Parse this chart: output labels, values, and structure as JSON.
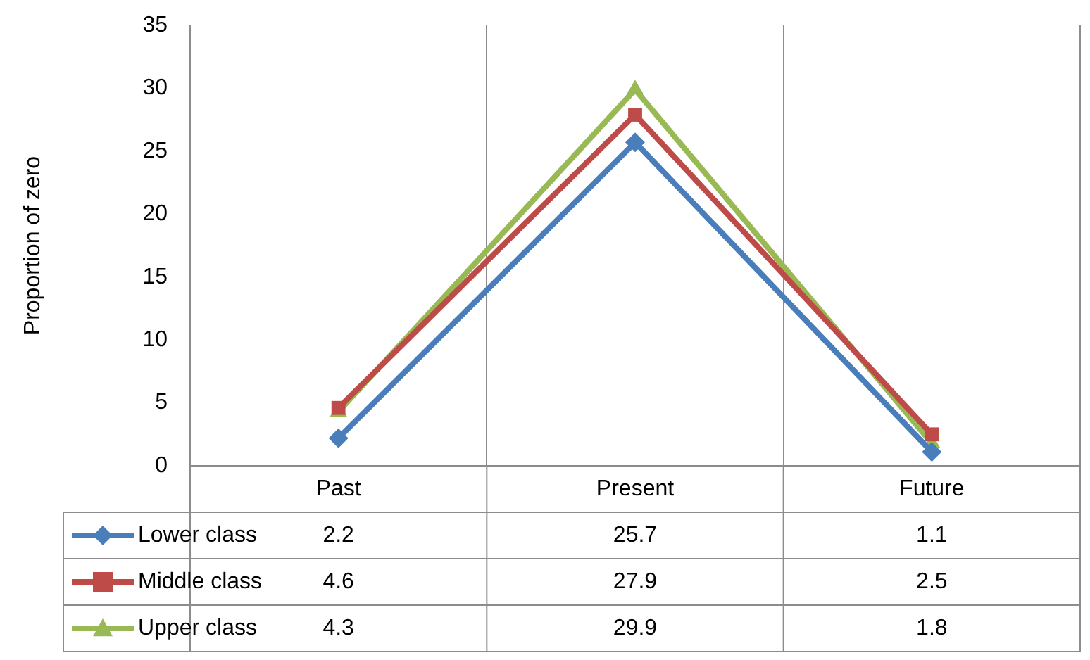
{
  "chart_data": {
    "type": "line",
    "ylabel": "Proportion of zero",
    "categories": [
      "Past",
      "Present",
      "Future"
    ],
    "series": [
      {
        "name": "Lower class",
        "color": "#4a7ebb",
        "marker": "diamond",
        "values": [
          2.2,
          25.7,
          1.1
        ]
      },
      {
        "name": "Middle class",
        "color": "#be4b48",
        "marker": "square",
        "values": [
          4.6,
          27.9,
          2.5
        ]
      },
      {
        "name": "Upper class",
        "color": "#98b954",
        "marker": "triangle",
        "values": [
          4.3,
          29.9,
          1.8
        ]
      }
    ],
    "ylim": [
      0,
      35
    ],
    "yticks": [
      0,
      5,
      10,
      15,
      20,
      25,
      30,
      35
    ],
    "grid": "x",
    "legend": "bottom",
    "data_labels": true
  }
}
